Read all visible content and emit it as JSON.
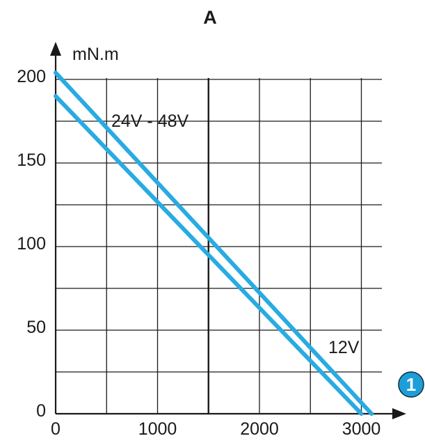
{
  "chart_data": {
    "type": "line",
    "title": "A",
    "ylabel": "mN.m",
    "xlabel": "",
    "xlim": [
      0,
      3200
    ],
    "ylim": [
      0,
      207
    ],
    "x_ticks": [
      0,
      1000,
      2000,
      3000
    ],
    "x_tick_labels": [
      "0",
      "1000",
      "2000",
      "3000"
    ],
    "y_ticks": [
      0,
      50,
      100,
      150,
      200
    ],
    "y_tick_labels": [
      "0",
      "50",
      "100",
      "150",
      "200"
    ],
    "x_grid": [
      500,
      1000,
      1500,
      2000,
      2500,
      3000
    ],
    "x_grid_major": [
      1500
    ],
    "y_grid": [
      25,
      50,
      75,
      100,
      125,
      150,
      175,
      200
    ],
    "grid": true,
    "series": [
      {
        "name": "24V - 48V",
        "x": [
          0,
          3000
        ],
        "y": [
          190,
          0
        ]
      },
      {
        "name": "12V",
        "x": [
          0,
          3100
        ],
        "y": [
          204,
          0
        ]
      }
    ],
    "axis_badge": "1",
    "colors": {
      "line": "#29ABE2",
      "badge_fill": "#1E9ED8",
      "grid": "#1a1a1a"
    }
  }
}
